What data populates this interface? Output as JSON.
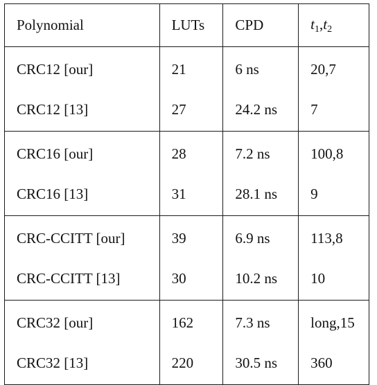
{
  "table": {
    "headers": {
      "polynomial": "Polynomial",
      "luts": "LUTs",
      "cpd": "CPD",
      "t1": "t",
      "t1_sub": "1",
      "t_sep": ",",
      "t2": "t",
      "t2_sub": "2"
    },
    "groups": [
      {
        "rows": [
          {
            "polynomial": "CRC12 [our]",
            "luts": "21",
            "cpd": "6 ns",
            "t": "20,7"
          },
          {
            "polynomial": "CRC12 [13]",
            "luts": "27",
            "cpd": "24.2 ns",
            "t": "7"
          }
        ]
      },
      {
        "rows": [
          {
            "polynomial": "CRC16 [our]",
            "luts": "28",
            "cpd": "7.2 ns",
            "t": "100,8"
          },
          {
            "polynomial": "CRC16 [13]",
            "luts": "31",
            "cpd": "28.1 ns",
            "t": "9"
          }
        ]
      },
      {
        "rows": [
          {
            "polynomial": "CRC-CCITT [our]",
            "luts": "39",
            "cpd": "6.9 ns",
            "t": "113,8"
          },
          {
            "polynomial": "CRC-CCITT [13]",
            "luts": "30",
            "cpd": "10.2 ns",
            "t": "10"
          }
        ]
      },
      {
        "rows": [
          {
            "polynomial": "CRC32 [our]",
            "luts": "162",
            "cpd": "7.3 ns",
            "t": "long,15"
          },
          {
            "polynomial": "CRC32 [13]",
            "luts": "220",
            "cpd": "30.5 ns",
            "t": "360"
          }
        ]
      }
    ]
  }
}
